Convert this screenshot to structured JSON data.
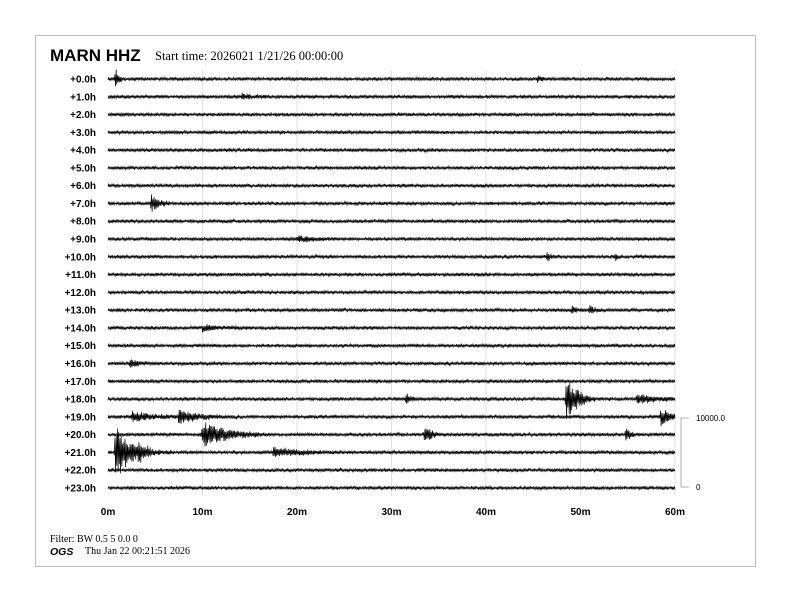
{
  "header": {
    "station": "MARN HHZ",
    "start_time": "Start time: 2026021  1/21/26 00:00:00"
  },
  "footer": {
    "filter": "Filter: BW 0.5 5 0.0 0",
    "org": "OGS",
    "timestamp": "Thu Jan 22 00:21:51 2026"
  },
  "chart_data": {
    "type": "helicorder",
    "row_labels": [
      "+0.0h",
      "+1.0h",
      "+2.0h",
      "+3.0h",
      "+4.0h",
      "+5.0h",
      "+6.0h",
      "+7.0h",
      "+8.0h",
      "+9.0h",
      "+10.0h",
      "+11.0h",
      "+12.0h",
      "+13.0h",
      "+14.0h",
      "+15.0h",
      "+16.0h",
      "+17.0h",
      "+18.0h",
      "+19.0h",
      "+20.0h",
      "+21.0h",
      "+22.0h",
      "+23.0h"
    ],
    "x_ticks": [
      "0m",
      "10m",
      "20m",
      "30m",
      "40m",
      "50m",
      "60m"
    ],
    "xlim": [
      0,
      60
    ],
    "grid": "vertical every 10m",
    "trace_color": "#000000",
    "scale": {
      "top_label": "10000.0",
      "bottom_label": "0",
      "max": 10000
    },
    "noise_amplitude": 220,
    "events": [
      {
        "hour": 0,
        "minute": 0.8,
        "amplitude": 1500,
        "duration": 0.3
      },
      {
        "hour": 0,
        "minute": 45.5,
        "amplitude": 600,
        "duration": 0.3
      },
      {
        "hour": 1,
        "minute": 14.2,
        "amplitude": 400,
        "duration": 1.2
      },
      {
        "hour": 7,
        "minute": 4.6,
        "amplitude": 1100,
        "duration": 0.8
      },
      {
        "hour": 9,
        "minute": 20,
        "amplitude": 400,
        "duration": 1.5
      },
      {
        "hour": 10,
        "minute": 46.5,
        "amplitude": 700,
        "duration": 0.3
      },
      {
        "hour": 10,
        "minute": 53.7,
        "amplitude": 800,
        "duration": 0.2
      },
      {
        "hour": 13,
        "minute": 49.1,
        "amplitude": 500,
        "duration": 0.5
      },
      {
        "hour": 13,
        "minute": 51,
        "amplitude": 500,
        "duration": 0.6
      },
      {
        "hour": 14,
        "minute": 10,
        "amplitude": 400,
        "duration": 2
      },
      {
        "hour": 16,
        "minute": 2.3,
        "amplitude": 500,
        "duration": 0.8
      },
      {
        "hour": 18,
        "minute": 31.5,
        "amplitude": 800,
        "duration": 0.5
      },
      {
        "hour": 18,
        "minute": 48.5,
        "amplitude": 3000,
        "duration": 1.2
      },
      {
        "hour": 18,
        "minute": 56,
        "amplitude": 700,
        "duration": 2
      },
      {
        "hour": 19,
        "minute": 2.5,
        "amplitude": 700,
        "duration": 2
      },
      {
        "hour": 19,
        "minute": 7.5,
        "amplitude": 900,
        "duration": 2
      },
      {
        "hour": 19,
        "minute": 58.5,
        "amplitude": 1200,
        "duration": 1
      },
      {
        "hour": 20,
        "minute": 10,
        "amplitude": 1700,
        "duration": 2.5
      },
      {
        "hour": 20,
        "minute": 33.5,
        "amplitude": 1500,
        "duration": 0.6
      },
      {
        "hour": 20,
        "minute": 54.8,
        "amplitude": 1300,
        "duration": 0.4
      },
      {
        "hour": 21,
        "minute": 0.8,
        "amplitude": 4000,
        "duration": 1.5
      },
      {
        "hour": 21,
        "minute": 3.2,
        "amplitude": 800,
        "duration": 1.5
      },
      {
        "hour": 21,
        "minute": 17.5,
        "amplitude": 600,
        "duration": 3
      }
    ]
  }
}
